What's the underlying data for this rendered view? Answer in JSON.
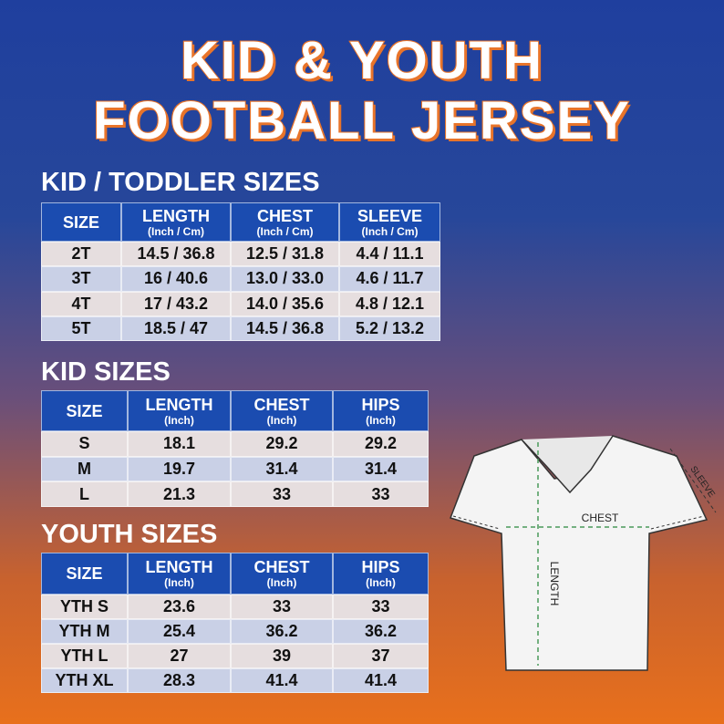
{
  "title": {
    "line1": "KID & YOUTH",
    "line2": "FOOTBALL JERSEY"
  },
  "tables": [
    {
      "heading": "KID / TODDLER SIZES",
      "columns": [
        {
          "name": "SIZE"
        },
        {
          "name": "LENGTH",
          "unit": "(Inch / Cm)"
        },
        {
          "name": "CHEST",
          "unit": "(Inch / Cm)"
        },
        {
          "name": "SLEEVE",
          "unit": "(Inch / Cm)"
        }
      ],
      "rows": [
        [
          "2T",
          "14.5 / 36.8",
          "12.5 / 31.8",
          "4.4 / 11.1"
        ],
        [
          "3T",
          "16 / 40.6",
          "13.0 / 33.0",
          "4.6 / 11.7"
        ],
        [
          "4T",
          "17 / 43.2",
          "14.0 / 35.6",
          "4.8 / 12.1"
        ],
        [
          "5T",
          "18.5 / 47",
          "14.5 / 36.8",
          "5.2 / 13.2"
        ]
      ]
    },
    {
      "heading": "KID SIZES",
      "columns": [
        {
          "name": "SIZE"
        },
        {
          "name": "LENGTH",
          "unit": "(Inch)"
        },
        {
          "name": "CHEST",
          "unit": "(Inch)"
        },
        {
          "name": "HIPS",
          "unit": "(Inch)"
        }
      ],
      "rows": [
        [
          "S",
          "18.1",
          "29.2",
          "29.2"
        ],
        [
          "M",
          "19.7",
          "31.4",
          "31.4"
        ],
        [
          "L",
          "21.3",
          "33",
          "33"
        ]
      ]
    },
    {
      "heading": "YOUTH SIZES",
      "columns": [
        {
          "name": "SIZE"
        },
        {
          "name": "LENGTH",
          "unit": "(Inch)"
        },
        {
          "name": "CHEST",
          "unit": "(Inch)"
        },
        {
          "name": "HIPS",
          "unit": "(Inch)"
        }
      ],
      "rows": [
        [
          "YTH S",
          "23.6",
          "33",
          "33"
        ],
        [
          "YTH M",
          "25.4",
          "36.2",
          "36.2"
        ],
        [
          "YTH L",
          "27",
          "39",
          "37"
        ],
        [
          "YTH XL",
          "28.3",
          "41.4",
          "41.4"
        ]
      ]
    }
  ],
  "diagram": {
    "chest": "CHEST",
    "length": "LENGTH",
    "sleeve": "SLEEVE"
  }
}
